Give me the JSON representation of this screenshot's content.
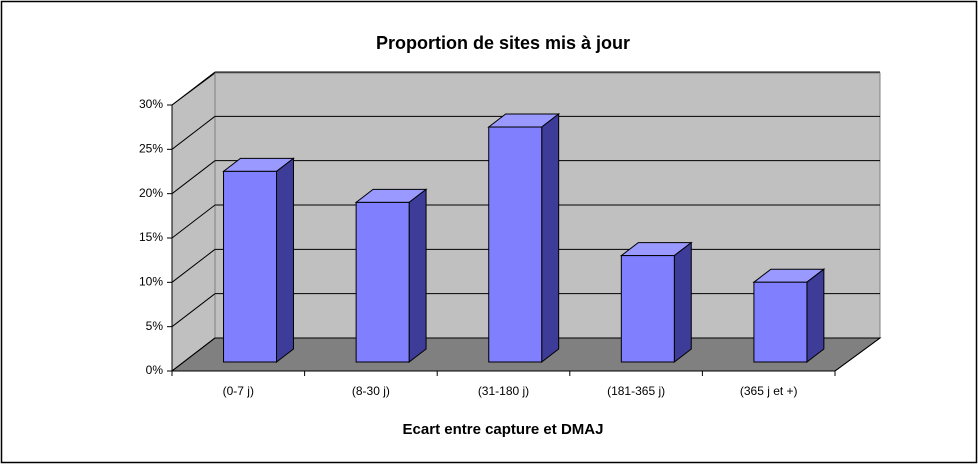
{
  "chart_data": {
    "type": "bar3d",
    "title": "Proportion de sites mis à jour",
    "x_label": "Ecart entre capture et DMAJ",
    "categories": [
      "(0-7 j)",
      "(8-30 j)",
      "(31-180 j)",
      "(181-365 j)",
      "(365 j et +)"
    ],
    "values": [
      21.5,
      18,
      26.5,
      12,
      9
    ],
    "color": "#8080ff",
    "ylim": [
      0,
      30
    ],
    "yticks": [
      {
        "value": 0,
        "label": "0%"
      },
      {
        "value": 5,
        "label": "5%"
      },
      {
        "value": 10,
        "label": "10%"
      },
      {
        "value": 15,
        "label": "15%"
      },
      {
        "value": 20,
        "label": "20%"
      },
      {
        "value": 25,
        "label": "25%"
      },
      {
        "value": 30,
        "label": "30%"
      }
    ],
    "grid": true
  }
}
